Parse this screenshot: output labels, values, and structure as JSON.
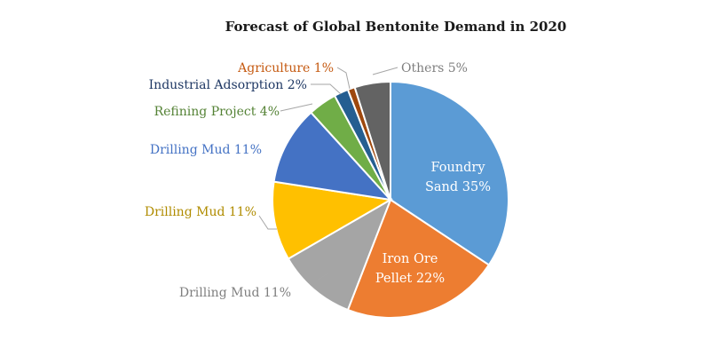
{
  "chart_data": {
    "type": "pie",
    "title": "Forecast of Global Bentonite Demand in 2020",
    "slices": [
      {
        "label": "Foundry Sand",
        "value": 35,
        "color": "#5b9bd5",
        "label_color": "#ffffff"
      },
      {
        "label": "Iron Ore Pellet",
        "value": 22,
        "color": "#ed7d31",
        "label_color": "#ffffff"
      },
      {
        "label": "Drilling Mud",
        "value": 11,
        "color": "#a5a5a5",
        "label_color": "#7f7f7f"
      },
      {
        "label": "Drilling Mud",
        "value": 11,
        "color": "#ffc000",
        "label_color": "#b08c00"
      },
      {
        "label": "Drilling Mud",
        "value": 11,
        "color": "#4472c4",
        "label_color": "#4472c4"
      },
      {
        "label": "Refining Project",
        "value": 4,
        "color": "#70ad47",
        "label_color": "#548235"
      },
      {
        "label": "Industrial Adsorption",
        "value": 2,
        "color": "#255e91",
        "label_color": "#1f3864"
      },
      {
        "label": "Agriculture",
        "value": 1,
        "color": "#9e480e",
        "label_color": "#c55a11"
      },
      {
        "label": "Others",
        "value": 5,
        "color": "#636363",
        "label_color": "#7f7f7f"
      }
    ],
    "labels": [
      {
        "lines": [
          "Foundry",
          "Sand 35%"
        ]
      },
      {
        "lines": [
          "Iron Ore",
          "Pellet 22%"
        ]
      },
      {
        "lines": [
          "Drilling Mud 11%"
        ]
      },
      {
        "lines": [
          "Drilling Mud 11%"
        ]
      },
      {
        "lines": [
          "Drilling Mud 11%"
        ]
      },
      {
        "lines": [
          "Refining Project 4%"
        ]
      },
      {
        "lines": [
          "Industrial Adsorption 2%"
        ]
      },
      {
        "lines": [
          "Agriculture 1%"
        ]
      },
      {
        "lines": [
          "Others 5%"
        ]
      }
    ]
  }
}
